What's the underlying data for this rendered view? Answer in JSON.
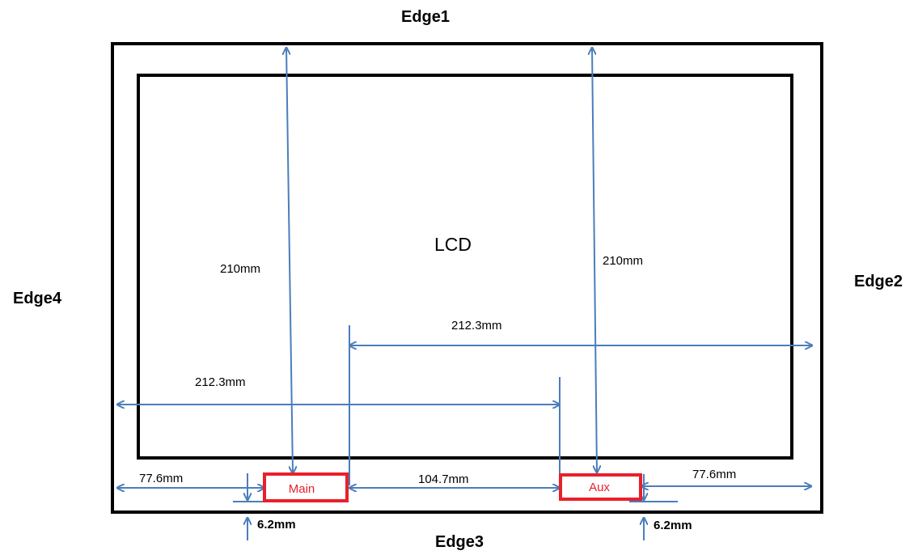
{
  "edges": {
    "top": "Edge1",
    "right": "Edge2",
    "bottom": "Edge3",
    "left": "Edge4"
  },
  "lcd": {
    "label": "LCD"
  },
  "microphones": {
    "main": "Main",
    "aux": "Aux"
  },
  "dimensions": {
    "main_to_top": "210mm",
    "aux_to_top": "210mm",
    "main_to_right": "212.3mm",
    "aux_to_left": "212.3mm",
    "main_to_left": "77.6mm",
    "aux_to_right": "77.6mm",
    "between_mics": "104.7mm",
    "main_to_bottom": "6.2mm",
    "aux_to_bottom": "6.2mm"
  },
  "colors": {
    "outline": "#000000",
    "mic_box": "#e8202a",
    "dimension_line": "#4a7ebb"
  }
}
